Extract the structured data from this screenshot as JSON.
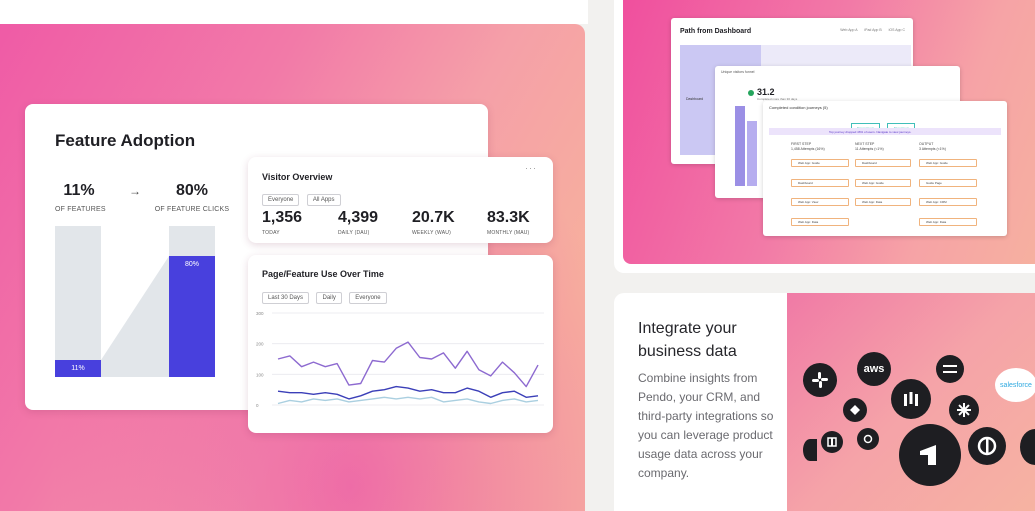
{
  "feature_adoption": {
    "title": "Feature Adoption",
    "stat_left": {
      "value": "11%",
      "label": "OF FEATURES"
    },
    "stat_right": {
      "value": "80%",
      "label": "OF FEATURE CLICKS"
    },
    "arrow": "→",
    "bar_left_label": "11%",
    "bar_left_fraction": 0.11,
    "bar_right_label": "80%",
    "bar_right_fraction": 0.8
  },
  "visitor_overview": {
    "title": "Visitor Overview",
    "menu": "···",
    "chips": [
      "Everyone",
      "All Apps"
    ],
    "metrics": [
      {
        "value": "1,356",
        "label": "TODAY"
      },
      {
        "value": "4,399",
        "label": "DAILY (DAU)"
      },
      {
        "value": "20.7K",
        "label": "WEEKLY (WAU)"
      },
      {
        "value": "83.3K",
        "label": "MONTHLY (MAU)"
      }
    ]
  },
  "page_feature_use": {
    "title": "Page/Feature Use Over Time",
    "chips": [
      "Last 30 Days",
      "Daily",
      "Everyone"
    ],
    "chart_data": {
      "type": "line",
      "y_ticks": [
        "300",
        "200",
        "100",
        "0"
      ],
      "ylim": [
        0,
        300
      ],
      "series": [
        {
          "color": "#8d6ad0",
          "values": [
            150,
            160,
            125,
            140,
            125,
            135,
            65,
            70,
            145,
            140,
            185,
            205,
            155,
            150,
            170,
            120,
            175,
            115,
            95,
            140,
            105,
            60,
            130
          ]
        },
        {
          "color": "#3b3fb8",
          "values": [
            45,
            40,
            40,
            35,
            40,
            35,
            20,
            30,
            45,
            50,
            60,
            55,
            45,
            50,
            40,
            40,
            55,
            45,
            25,
            40,
            45,
            25,
            30
          ]
        },
        {
          "color": "#aacfe0",
          "values": [
            5,
            15,
            10,
            20,
            15,
            20,
            10,
            15,
            20,
            25,
            20,
            25,
            20,
            25,
            10,
            15,
            20,
            10,
            5,
            15,
            20,
            10,
            15
          ]
        }
      ]
    }
  },
  "screenshot_panel": {
    "path_title": "Path from Dashboard",
    "legend": [
      "Web App A",
      "iPad App B",
      "iOS App C"
    ],
    "col_caption": "Dashboard",
    "funnel_header": "Unique visitors funnel",
    "funnel_value": "31.2",
    "funnel_value_label": "Completed more than 30 days",
    "journeys_title": "Completed condition journeys (5)",
    "buttons": [
      "Top journeys",
      "All journeys"
    ],
    "banner": "Top journey dropped 46% of users. Navigate to view journeys.",
    "columns": [
      {
        "title": "FIRST STEP",
        "sub": "1,458 Attempts (16%)"
      },
      {
        "title": "NEXT STEP",
        "sub": "11 Attempts (<1%)"
      },
      {
        "title": "OUTPUT",
        "sub": "3 Attempts (<1%)"
      }
    ],
    "step_items": [
      "Web App: Guide",
      "Dashboard",
      "Web App: View",
      "Web App: Data",
      "Dashboard",
      "Web App: Guide",
      "Web App: Data",
      "Web App",
      "Web App: Guide",
      "Guide Page",
      "Web App: CRM",
      "Web App: Data"
    ]
  },
  "integrate": {
    "title_line1": "Integrate your",
    "title_line2": "business data",
    "body": "Combine insights from Pendo, your CRM, and third-party integrations so you can leverage product usage data across your company.",
    "logos": [
      "slack-logo",
      "aws-logo",
      "segment-logo",
      "salesforce-logo",
      "intercom-logo",
      "marketo-logo",
      "zendesk-logo",
      "hubspot-logo",
      "zapier-logo",
      "pendo-logo",
      "hubstaff-logo",
      "amplitude-logo",
      "gainsight-logo"
    ],
    "aws_text": "aws",
    "salesforce_text": "salesforce"
  }
}
